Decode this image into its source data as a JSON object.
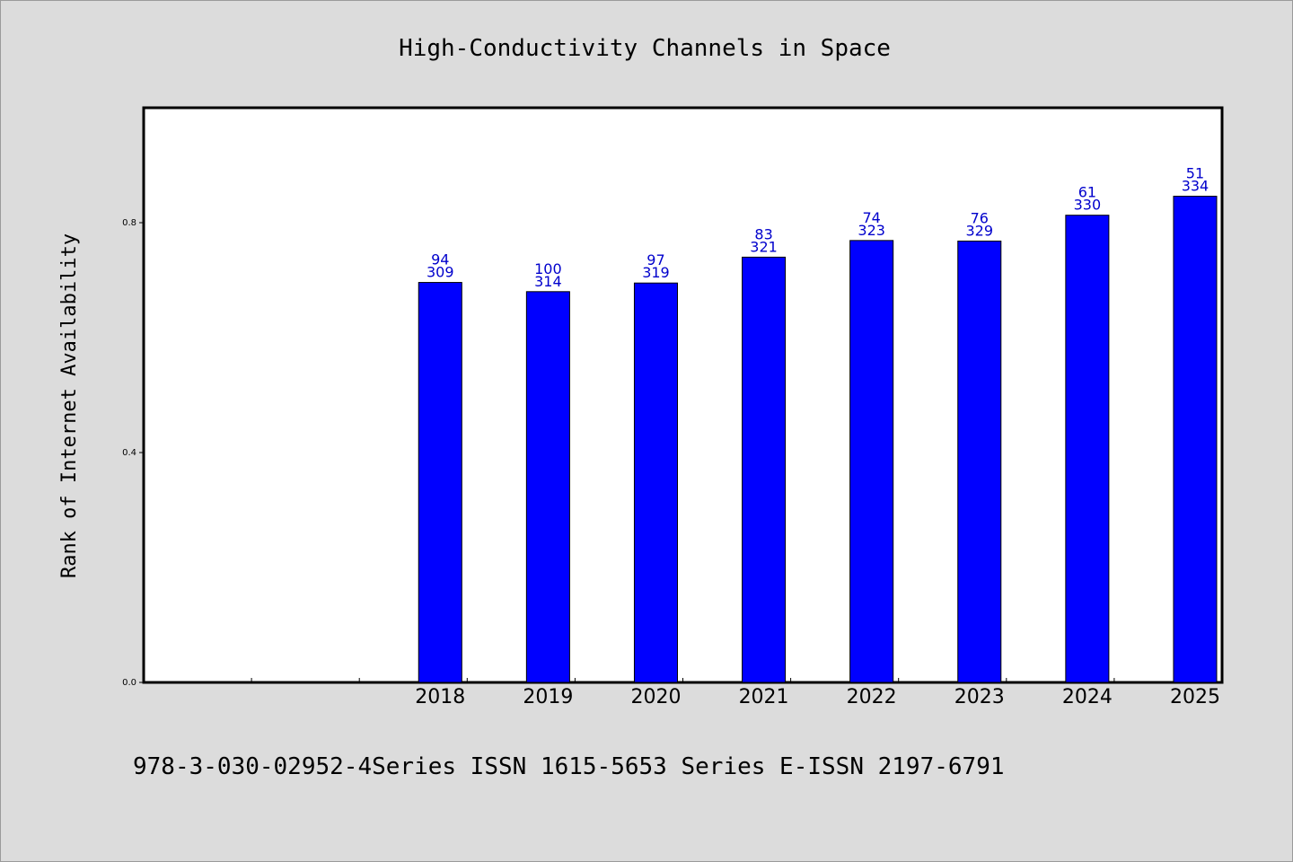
{
  "chart_data": {
    "type": "bar",
    "title": "High-Conductivity Channels in Space",
    "xlabel": "",
    "ylabel": "Rank of Internet Availability",
    "ylim": [
      0.0,
      1.0
    ],
    "yticks": [
      "0.0",
      "0.4",
      "0.8"
    ],
    "ytick_values": [
      0.0,
      0.4,
      0.8
    ],
    "categories": [
      "2018",
      "2019",
      "2020",
      "2021",
      "2022",
      "2023",
      "2024",
      "2025"
    ],
    "values": [
      0.696,
      0.68,
      0.695,
      0.74,
      0.769,
      0.768,
      0.813,
      0.846
    ],
    "label_top": [
      "94",
      "100",
      "97",
      "83",
      "74",
      "76",
      "61",
      "51"
    ],
    "label_bottom": [
      "309",
      "314",
      "319",
      "321",
      "323",
      "329",
      "330",
      "334"
    ],
    "leading_empty_categories": 2,
    "bar_color": "#0000ff",
    "label_color": "#0000cc",
    "grid": false,
    "legend": "none"
  },
  "footer": {
    "text": "978-3-030-02952-4Series ISSN 1615-5653 Series E-ISSN 2197-6791"
  },
  "colors": {
    "background": "#dcdcdc",
    "plot_background": "#ffffff",
    "axis": "#000000"
  }
}
